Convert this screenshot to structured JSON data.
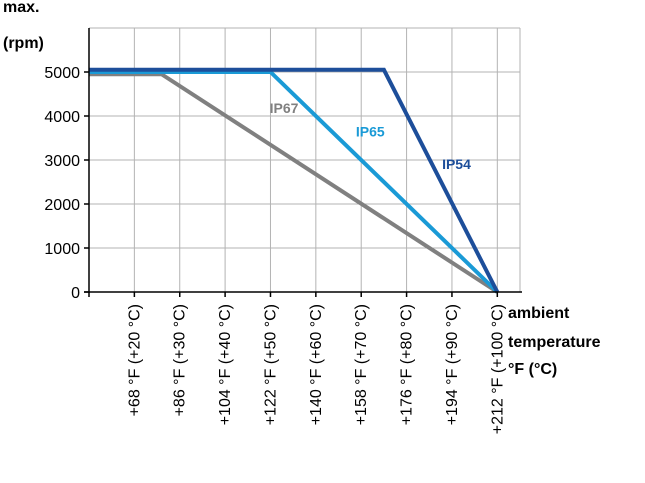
{
  "chart_data": {
    "type": "line",
    "ylabel_lines": [
      "max.",
      "(rpm)"
    ],
    "xlabel_lines": [
      "ambient",
      "temperature",
      "°F (°C)"
    ],
    "x_ticks": [
      "+68 °F (+20 °C)",
      "+86 °F (+30 °C)",
      "+104 °F (+40 °C)",
      "+122 °F (+50 °C)",
      "+140 °F (+60 °C)",
      "+158 °F (+70 °C)",
      "+176 °F (+80 °C)",
      "+194 °F (+90 °C)",
      "+212 °F (+100 °C)"
    ],
    "x_tick_values": [
      20,
      30,
      40,
      50,
      60,
      70,
      80,
      90,
      100
    ],
    "y_ticks": [
      "0",
      "1000",
      "2000",
      "3000",
      "4000",
      "5000"
    ],
    "y_tick_values": [
      0,
      1000,
      2000,
      3000,
      4000,
      5000
    ],
    "xlim": [
      10,
      105
    ],
    "ylim": [
      0,
      5900
    ],
    "grid": true,
    "series": [
      {
        "name": "IP67",
        "color": "#808080",
        "points": [
          [
            10,
            4950
          ],
          [
            26,
            4950
          ],
          [
            100,
            0
          ]
        ]
      },
      {
        "name": "IP65",
        "color": "#1a9ad6",
        "points": [
          [
            10,
            5000
          ],
          [
            50,
            5000
          ],
          [
            100,
            0
          ]
        ]
      },
      {
        "name": "IP54",
        "color": "#1d4e9a",
        "points": [
          [
            10,
            5050
          ],
          [
            75,
            5050
          ],
          [
            100,
            0
          ]
        ]
      }
    ],
    "label_anchors": [
      {
        "series": "IP67",
        "x": 53,
        "y": 4070
      },
      {
        "series": "IP65",
        "x": 72,
        "y": 3530
      },
      {
        "series": "IP54",
        "x": 91,
        "y": 2800
      }
    ]
  }
}
